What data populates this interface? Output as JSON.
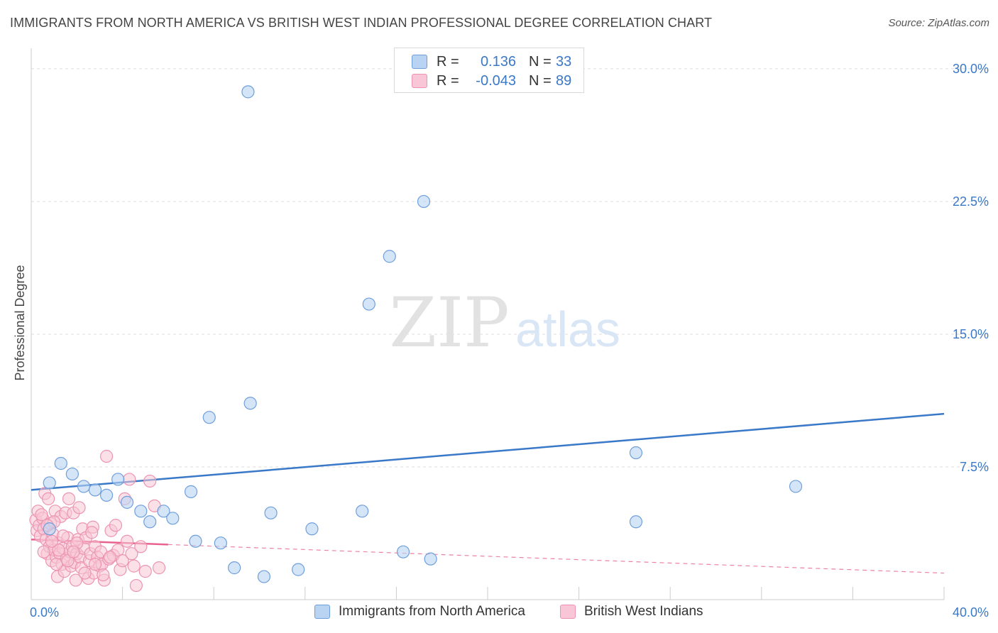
{
  "title": "IMMIGRANTS FROM NORTH AMERICA VS BRITISH WEST INDIAN PROFESSIONAL DEGREE CORRELATION CHART",
  "source": "Source: ZipAtlas.com",
  "watermark": {
    "zip": "ZIP",
    "atlas": "atlas"
  },
  "colors": {
    "blue": "#3a78c8",
    "blue_fill": "#b9d3f3",
    "blue_stroke": "#6f9fdb",
    "pink": "#e8648f",
    "pink_fill": "#f8c6d6",
    "pink_stroke": "#ec94b2",
    "grid": "#dddddd",
    "axis": "#cccccc"
  },
  "legend": {
    "rows": [
      {
        "r_label": "R =",
        "r_value": "0.136",
        "n_label": "N =",
        "n_value": "33"
      },
      {
        "r_label": "R =",
        "r_value": "-0.043",
        "n_label": "N =",
        "n_value": "89"
      }
    ]
  },
  "chart_data": {
    "type": "scatter",
    "title": "IMMIGRANTS FROM NORTH AMERICA VS BRITISH WEST INDIAN PROFESSIONAL DEGREE CORRELATION CHART",
    "xlabel": "",
    "ylabel": "Professional Degree",
    "xlim": [
      0,
      40
    ],
    "ylim": [
      0,
      31
    ],
    "x_tick_labels": [
      "0.0%",
      "40.0%"
    ],
    "y_ticks": [
      7.5,
      15.0,
      22.5,
      30.0
    ],
    "y_tick_labels": [
      "7.5%",
      "15.0%",
      "22.5%",
      "30.0%"
    ],
    "grid": true,
    "legend_position": "top-center",
    "series": [
      {
        "name": "Immigrants from North America",
        "color": "blue",
        "trend": {
          "x": [
            0,
            40
          ],
          "y": [
            6.2,
            10.5
          ],
          "dashed_from": null
        },
        "points": [
          [
            0.8,
            4.0
          ],
          [
            0.8,
            6.6
          ],
          [
            1.3,
            7.7
          ],
          [
            1.8,
            7.1
          ],
          [
            2.3,
            6.4
          ],
          [
            2.8,
            6.2
          ],
          [
            3.3,
            5.9
          ],
          [
            3.8,
            6.8
          ],
          [
            4.2,
            5.5
          ],
          [
            4.8,
            5.0
          ],
          [
            5.2,
            4.4
          ],
          [
            5.8,
            5.0
          ],
          [
            6.2,
            4.6
          ],
          [
            7.0,
            6.1
          ],
          [
            7.2,
            3.3
          ],
          [
            7.8,
            10.3
          ],
          [
            8.3,
            3.2
          ],
          [
            8.9,
            1.8
          ],
          [
            9.5,
            28.7
          ],
          [
            9.6,
            11.1
          ],
          [
            10.2,
            1.3
          ],
          [
            10.5,
            4.9
          ],
          [
            11.7,
            1.7
          ],
          [
            12.3,
            4.0
          ],
          [
            14.5,
            5.0
          ],
          [
            14.8,
            16.7
          ],
          [
            15.7,
            19.4
          ],
          [
            16.3,
            2.7
          ],
          [
            17.2,
            22.5
          ],
          [
            17.5,
            2.3
          ],
          [
            26.5,
            8.3
          ],
          [
            26.5,
            4.4
          ],
          [
            33.5,
            6.4
          ]
        ]
      },
      {
        "name": "British West Indians",
        "color": "pink",
        "trend": {
          "x": [
            0,
            40
          ],
          "y": [
            3.4,
            1.5
          ],
          "solid_until": 6.0
        },
        "points": [
          [
            0.2,
            4.5
          ],
          [
            0.25,
            3.9
          ],
          [
            0.3,
            5.0
          ],
          [
            0.35,
            4.2
          ],
          [
            0.4,
            3.6
          ],
          [
            0.5,
            4.6
          ],
          [
            0.55,
            4.0
          ],
          [
            0.6,
            6.0
          ],
          [
            0.65,
            3.4
          ],
          [
            0.7,
            2.6
          ],
          [
            0.75,
            5.7
          ],
          [
            0.8,
            3.0
          ],
          [
            0.85,
            4.3
          ],
          [
            0.9,
            2.2
          ],
          [
            0.95,
            3.7
          ],
          [
            1.0,
            2.8
          ],
          [
            1.05,
            5.0
          ],
          [
            1.1,
            2.4
          ],
          [
            1.15,
            1.3
          ],
          [
            1.2,
            3.2
          ],
          [
            1.25,
            2.6
          ],
          [
            1.3,
            4.7
          ],
          [
            1.35,
            2.0
          ],
          [
            1.4,
            2.9
          ],
          [
            1.45,
            1.6
          ],
          [
            1.5,
            4.9
          ],
          [
            1.55,
            2.3
          ],
          [
            1.6,
            3.5
          ],
          [
            1.65,
            5.7
          ],
          [
            1.7,
            2.7
          ],
          [
            1.75,
            1.9
          ],
          [
            1.8,
            3.0
          ],
          [
            1.85,
            4.9
          ],
          [
            1.9,
            2.1
          ],
          [
            1.95,
            1.1
          ],
          [
            2.0,
            2.6
          ],
          [
            2.05,
            3.4
          ],
          [
            2.1,
            5.2
          ],
          [
            2.15,
            2.4
          ],
          [
            2.2,
            1.8
          ],
          [
            2.25,
            4.0
          ],
          [
            2.3,
            2.9
          ],
          [
            2.4,
            3.5
          ],
          [
            2.5,
            1.2
          ],
          [
            2.55,
            2.2
          ],
          [
            2.6,
            2.6
          ],
          [
            2.7,
            4.1
          ],
          [
            2.75,
            1.5
          ],
          [
            2.8,
            3.0
          ],
          [
            2.9,
            2.4
          ],
          [
            3.0,
            1.9
          ],
          [
            3.05,
            2.7
          ],
          [
            3.1,
            2.0
          ],
          [
            3.2,
            1.1
          ],
          [
            3.3,
            8.1
          ],
          [
            3.4,
            2.3
          ],
          [
            3.5,
            3.9
          ],
          [
            3.6,
            2.5
          ],
          [
            3.7,
            4.2
          ],
          [
            3.8,
            2.8
          ],
          [
            3.9,
            1.7
          ],
          [
            4.0,
            2.2
          ],
          [
            4.1,
            5.7
          ],
          [
            4.2,
            3.3
          ],
          [
            4.3,
            6.8
          ],
          [
            4.4,
            2.6
          ],
          [
            4.5,
            1.9
          ],
          [
            4.6,
            0.8
          ],
          [
            4.8,
            3.0
          ],
          [
            5.0,
            1.6
          ],
          [
            5.2,
            6.7
          ],
          [
            5.4,
            5.3
          ],
          [
            5.6,
            1.8
          ],
          [
            1.0,
            4.4
          ],
          [
            1.2,
            2.8
          ],
          [
            0.45,
            4.8
          ],
          [
            0.55,
            2.7
          ],
          [
            1.6,
            2.2
          ],
          [
            2.0,
            3.2
          ],
          [
            2.35,
            1.5
          ],
          [
            2.65,
            3.8
          ],
          [
            0.7,
            4.2
          ],
          [
            1.4,
            3.6
          ],
          [
            1.85,
            2.7
          ],
          [
            3.15,
            1.4
          ],
          [
            0.9,
            3.3
          ],
          [
            2.8,
            2.0
          ],
          [
            1.1,
            2.0
          ],
          [
            3.45,
            2.4
          ]
        ]
      }
    ]
  },
  "bottom_legend": [
    {
      "label": "Immigrants from North America",
      "color": "blue"
    },
    {
      "label": "British West Indians",
      "color": "pink"
    }
  ]
}
